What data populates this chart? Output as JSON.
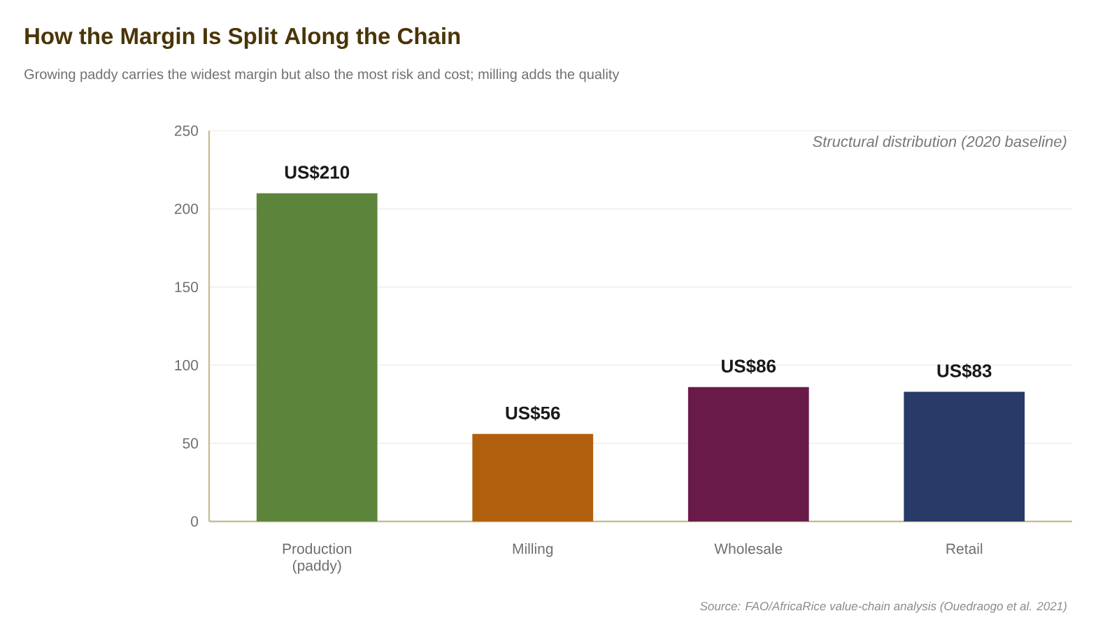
{
  "chart_data": {
    "type": "bar",
    "title": "How the Margin Is Split Along the Chain",
    "subtitle": "Growing paddy carries the widest margin but also the most risk and cost; milling adds the quality",
    "categories": [
      "Production (paddy)",
      "Milling",
      "Wholesale",
      "Retail"
    ],
    "values": [
      210,
      56,
      86,
      83
    ],
    "colors": [
      "#5c843b",
      "#b0600d",
      "#6a1a48",
      "#273a68"
    ],
    "value_labels": [
      "US$210",
      "US$56",
      "US$86",
      "US$83"
    ],
    "ylim": [
      0,
      250
    ],
    "yticks": [
      0,
      50,
      100,
      150,
      200,
      250
    ],
    "grid": "y",
    "annotations": [
      "Structural distribution (2020 baseline)",
      "Source: FAO/AfricaRice value-chain analysis (Ouedraogo et al. 2021)"
    ]
  }
}
